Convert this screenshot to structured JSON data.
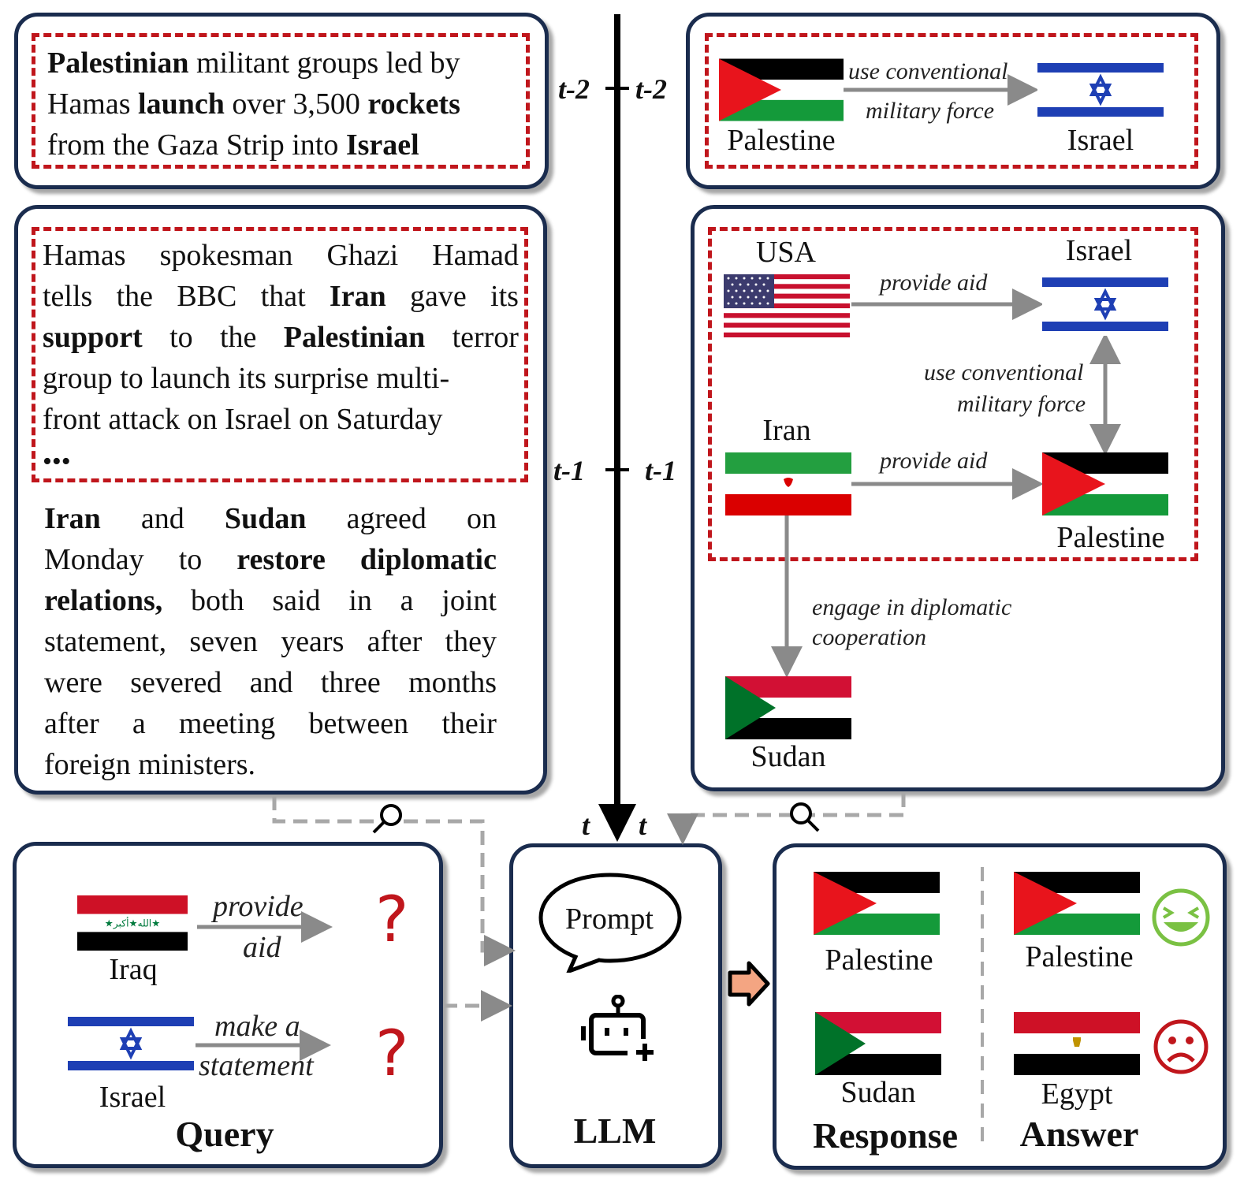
{
  "timeline": {
    "left_labels": [
      "t-2",
      "t-1",
      "t"
    ],
    "right_labels": [
      "t-2",
      "t-1",
      "t"
    ]
  },
  "news": {
    "t2_lines": [
      [
        {
          "t": "Palestinian",
          "b": true
        },
        {
          "t": " militant groups led by",
          "b": false
        }
      ],
      [
        {
          "t": "Hamas ",
          "b": false
        },
        {
          "t": "launch",
          "b": true
        },
        {
          "t": " over 3,500 ",
          "b": false
        },
        {
          "t": "rockets",
          "b": true
        }
      ],
      [
        {
          "t": "from the Gaza Strip into ",
          "b": false
        },
        {
          "t": "Israel",
          "b": true
        }
      ]
    ],
    "t1_lines": [
      [
        {
          "t": "Hamas",
          "b": false
        },
        {
          "t": "spokesman",
          "b": false
        },
        {
          "t": "Ghazi",
          "b": false
        },
        {
          "t": "Hamad",
          "b": false
        }
      ],
      [
        {
          "t": "tells",
          "b": false
        },
        {
          "t": "the",
          "b": false
        },
        {
          "t": "BBC",
          "b": false
        },
        {
          "t": "that",
          "b": false
        },
        {
          "t": "Iran",
          "b": true
        },
        {
          "t": "gave",
          "b": false
        },
        {
          "t": "its",
          "b": false
        }
      ],
      [
        {
          "t": "support",
          "b": true
        },
        {
          "t": "to",
          "b": false
        },
        {
          "t": "the",
          "b": false
        },
        {
          "t": "Palestinian",
          "b": true
        },
        {
          "t": "terror",
          "b": false
        }
      ],
      [
        {
          "t": "group to launch its surprise multi-",
          "b": false
        }
      ],
      [
        {
          "t": "front attack on Israel on Saturday",
          "b": false
        }
      ]
    ],
    "ellipsis": "•••",
    "extra_lines": [
      [
        {
          "t": "Iran",
          "b": true
        },
        {
          "t": "and",
          "b": false
        },
        {
          "t": "Sudan",
          "b": true
        },
        {
          "t": "agreed",
          "b": false
        },
        {
          "t": "on",
          "b": false
        }
      ],
      [
        {
          "t": "Monday",
          "b": false
        },
        {
          "t": "to",
          "b": false
        },
        {
          "t": "restore",
          "b": true
        },
        {
          "t": "diplomatic",
          "b": true
        }
      ],
      [
        {
          "t": "relations,",
          "b": true
        },
        {
          "t": "both",
          "b": false
        },
        {
          "t": "said",
          "b": false
        },
        {
          "t": "in",
          "b": false
        },
        {
          "t": "a",
          "b": false
        },
        {
          "t": "joint",
          "b": false
        }
      ],
      [
        {
          "t": "statement,",
          "b": false
        },
        {
          "t": "seven",
          "b": false
        },
        {
          "t": "years",
          "b": false
        },
        {
          "t": "after",
          "b": false
        },
        {
          "t": "they",
          "b": false
        }
      ],
      [
        {
          "t": "were",
          "b": false
        },
        {
          "t": "severed",
          "b": false
        },
        {
          "t": "and",
          "b": false
        },
        {
          "t": "three",
          "b": false
        },
        {
          "t": "months",
          "b": false
        }
      ],
      [
        {
          "t": "after",
          "b": false
        },
        {
          "t": "a",
          "b": false
        },
        {
          "t": "meeting",
          "b": false
        },
        {
          "t": "between",
          "b": false
        },
        {
          "t": "their",
          "b": false
        }
      ],
      [
        {
          "t": "foreign ministers.",
          "b": false
        }
      ]
    ]
  },
  "graph_t2": {
    "source": "Palestine",
    "target": "Israel",
    "relation_line1": "use conventional",
    "relation_line2": "military force"
  },
  "graph_t1": {
    "usa": "USA",
    "israel": "Israel",
    "iran": "Iran",
    "palestine": "Palestine",
    "sudan": "Sudan",
    "rel_usa_israel": "provide aid",
    "rel_israel_palestine_1": "use conventional",
    "rel_israel_palestine_2": "military force",
    "rel_iran_palestine": "provide aid",
    "rel_iran_sudan_1": "engage in diplomatic",
    "rel_iran_sudan_2": "cooperation"
  },
  "query": {
    "title": "Query",
    "q1_subject": "Iraq",
    "q1_rel_1": "provide",
    "q1_rel_2": "aid",
    "q2_subject": "Israel",
    "q2_rel_1": "make a",
    "q2_rel_2": "statement",
    "unknown_mark": "?"
  },
  "llm": {
    "prompt_label": "Prompt",
    "title": "LLM",
    "icon": "robot-icon"
  },
  "result": {
    "response_title": "Response",
    "answer_title": "Answer",
    "response_1": "Palestine",
    "response_2": "Sudan",
    "answer_1": "Palestine",
    "answer_2": "Egypt",
    "correct_icon": "laughing-face-icon",
    "wrong_icon": "sad-face-icon"
  },
  "colors": {
    "panel_border": "#1a2c4e",
    "dashed_highlight": "#c0161c",
    "arrow_gray": "#8a8a8a",
    "happy_green": "#7ac143",
    "sad_red": "#c0161c",
    "orange_arrow": "#f4a582"
  }
}
